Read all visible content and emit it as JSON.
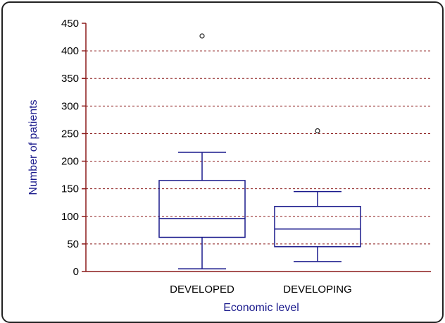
{
  "chart_data": {
    "type": "box",
    "title": "",
    "xlabel": "Economic level",
    "ylabel": "Number of patients",
    "ylim": [
      0,
      450
    ],
    "yticks": [
      0,
      50,
      100,
      150,
      200,
      250,
      300,
      350,
      400,
      450
    ],
    "grid": "horizontal-dashed",
    "categories": [
      "DEVELOPED",
      "DEVELOPING"
    ],
    "boxes": [
      {
        "category": "DEVELOPED",
        "whisker_low": 5,
        "q1": 62,
        "median": 96,
        "q3": 165,
        "whisker_high": 216,
        "outliers": [
          427
        ]
      },
      {
        "category": "DEVELOPING",
        "whisker_low": 18,
        "q1": 45,
        "median": 77,
        "q3": 118,
        "whisker_high": 145,
        "outliers": [
          255
        ]
      }
    ],
    "colors": {
      "box": "#1a1a8c",
      "grid": "#8b1a1a",
      "axis": "#8b1a1a",
      "outlier": "#222222"
    }
  }
}
